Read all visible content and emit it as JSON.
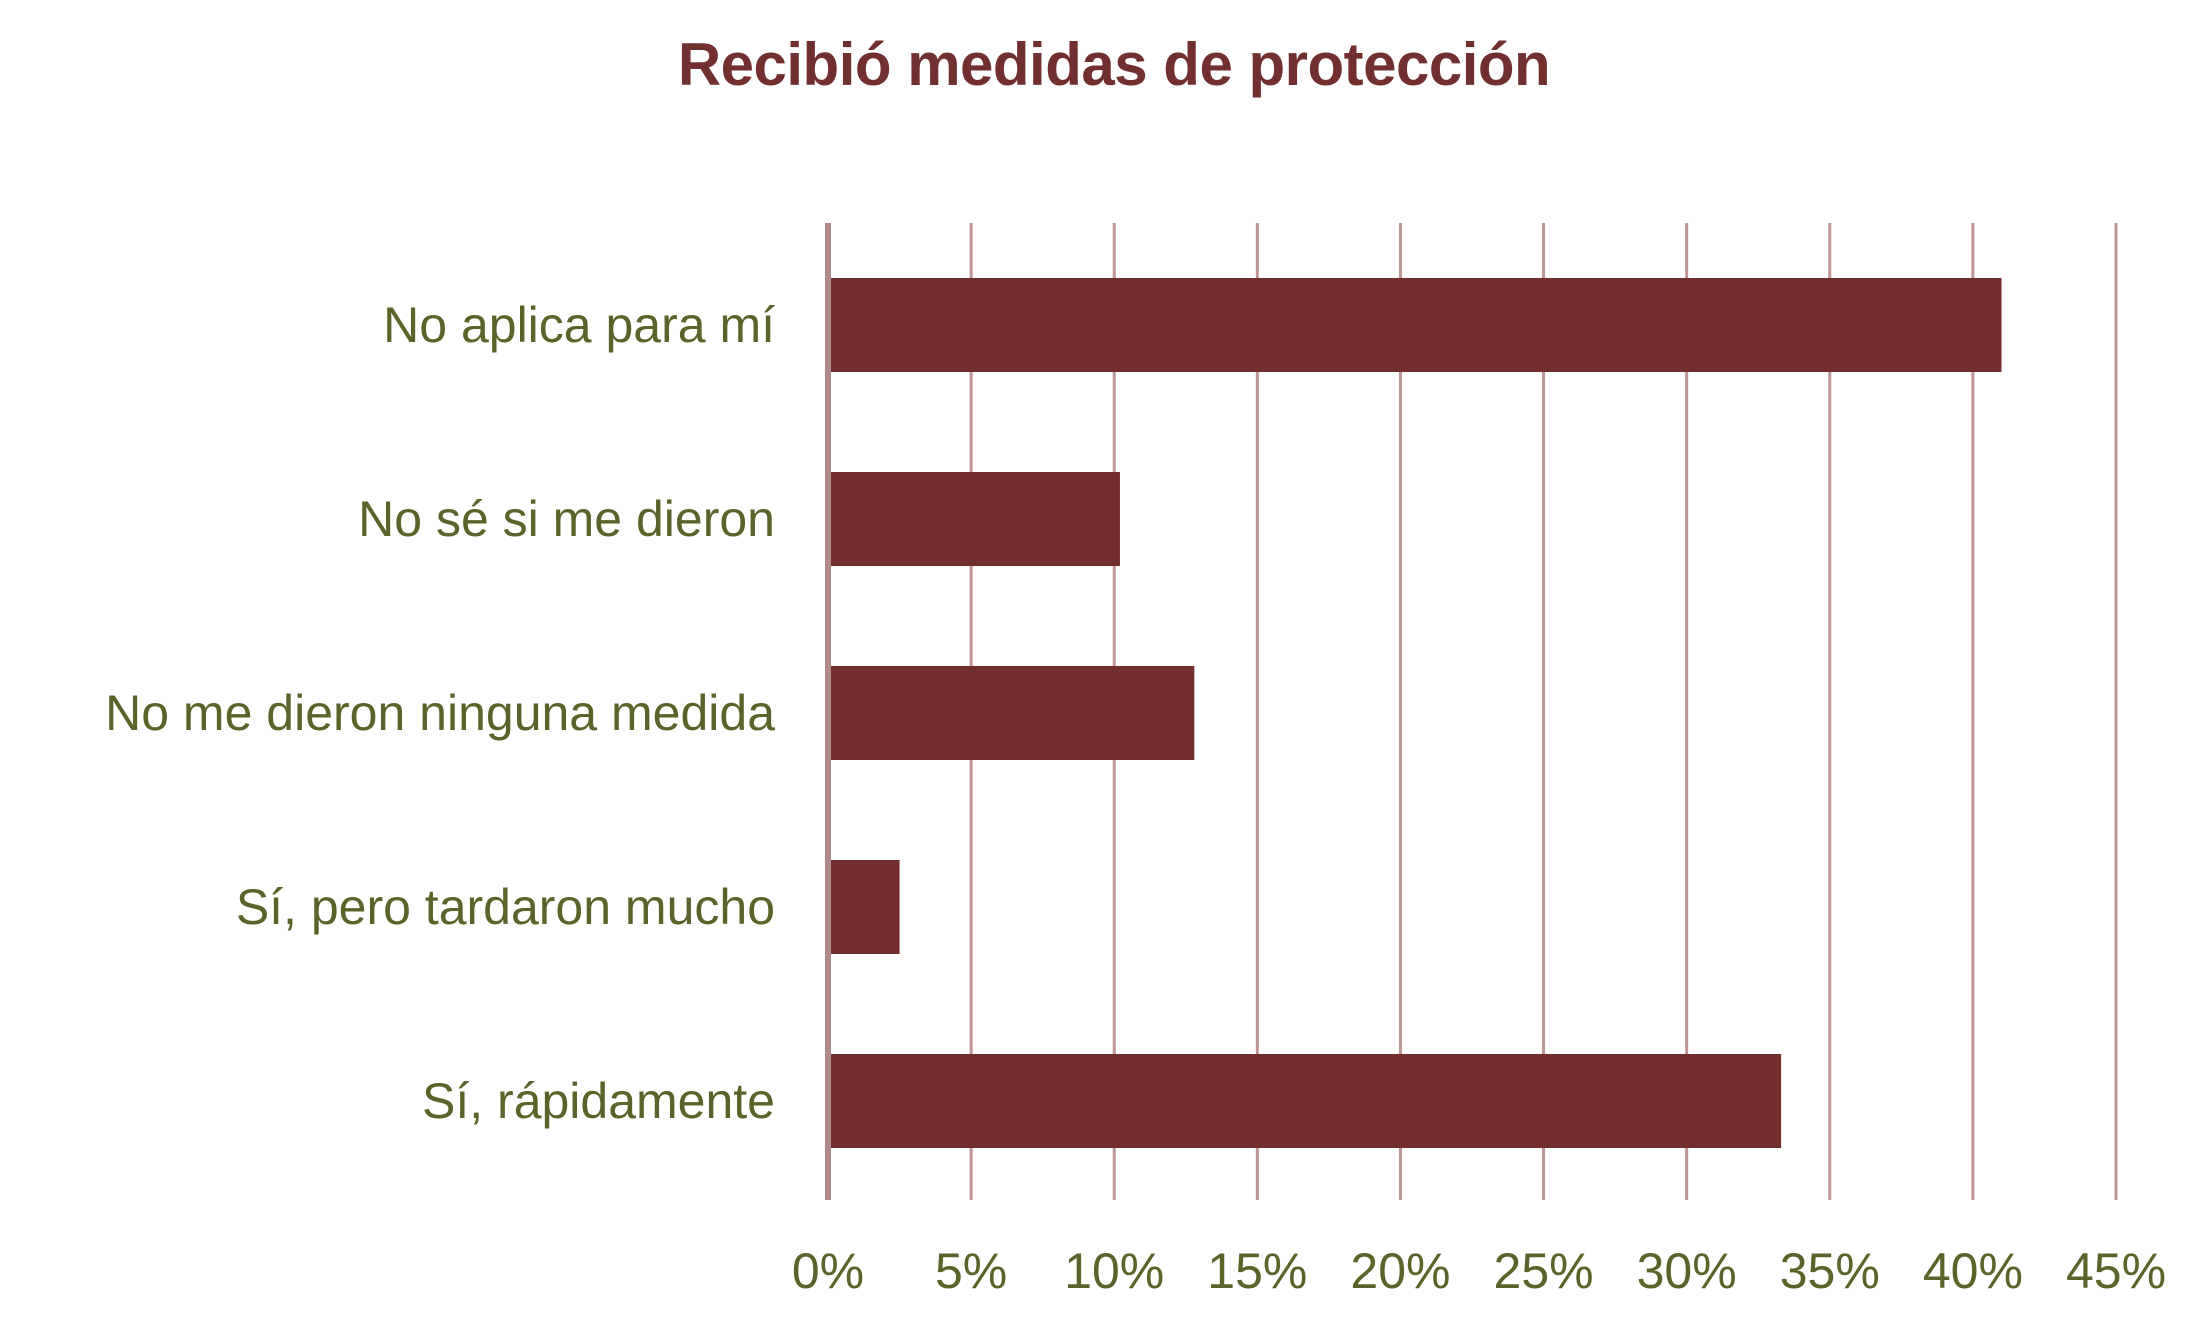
{
  "colors": {
    "title": "#722F2F",
    "bar": "#722D2D",
    "grid": "#BC9594",
    "axis": "#B08A89",
    "label": "#5A632A"
  },
  "chart_data": {
    "type": "bar",
    "orientation": "horizontal",
    "title": "Recibió medidas de protección",
    "xlabel": "",
    "ylabel": "",
    "categories": [
      "No aplica para mí",
      "No sé si me dieron",
      "No me dieron ninguna medida",
      "Sí, pero tardaron mucho",
      "Sí, rápidamente"
    ],
    "values": [
      41.0,
      10.2,
      12.8,
      2.5,
      33.3
    ],
    "unit": "%",
    "xlim": [
      0,
      45
    ],
    "xticks": [
      0,
      5,
      10,
      15,
      20,
      25,
      30,
      35,
      40,
      45
    ],
    "xtick_labels": [
      "0%",
      "5%",
      "10%",
      "15%",
      "20%",
      "25%",
      "30%",
      "35%",
      "40%",
      "45%"
    ],
    "grid": true,
    "legend": "none"
  }
}
